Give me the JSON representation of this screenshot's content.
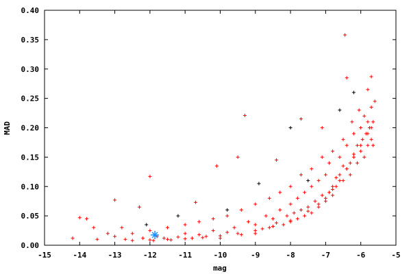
{
  "chart_data": {
    "type": "scatter",
    "title": "",
    "xlabel": "mag",
    "ylabel": "MAD",
    "xlim": [
      -15,
      -5
    ],
    "ylim": [
      0,
      0.4
    ],
    "xticks": [
      -15,
      -14,
      -13,
      -12,
      -11,
      -10,
      -9,
      -8,
      -7,
      -6,
      -5
    ],
    "xtick_labels": [
      "-15",
      "-14",
      "-13",
      "-12",
      "-11",
      "-10",
      "-9",
      "-8",
      "-7",
      "-6",
      "-5"
    ],
    "yticks": [
      0,
      0.05,
      0.1,
      0.15,
      0.2,
      0.25,
      0.3,
      0.35,
      0.4
    ],
    "ytick_labels": [
      "0.00",
      "0.05",
      "0.10",
      "0.15",
      "0.20",
      "0.25",
      "0.30",
      "0.35",
      "0.40"
    ],
    "grid": false,
    "colors": {
      "red": "#ff0000",
      "black": "#000000",
      "highlight": "#1e90ff"
    },
    "series": [
      {
        "color": "#ff0000",
        "marker": "plus",
        "points": [
          [
            -6.45,
            0.358
          ],
          [
            -9.3,
            0.221
          ],
          [
            -12,
            0.117
          ],
          [
            -13,
            0.077
          ],
          [
            -14,
            0.047
          ],
          [
            -13.8,
            0.045
          ],
          [
            -10.7,
            0.073
          ],
          [
            -10.1,
            0.135
          ],
          [
            -7.7,
            0.215
          ],
          [
            -7.1,
            0.2
          ],
          [
            -6.4,
            0.285
          ],
          [
            -5.7,
            0.287
          ],
          [
            -5.8,
            0.265
          ],
          [
            -9.5,
            0.15
          ],
          [
            -8.4,
            0.145
          ],
          [
            -14.2,
            0.012
          ],
          [
            -13.2,
            0.02
          ],
          [
            -13.6,
            0.03
          ],
          [
            -12.8,
            0.03
          ],
          [
            -12.3,
            0.065
          ],
          [
            -11.8,
            0.015
          ],
          [
            -11.6,
            0.012
          ],
          [
            -11.4,
            0.009
          ],
          [
            -11.2,
            0.014
          ],
          [
            -11,
            0.02
          ],
          [
            -10.8,
            0.012
          ],
          [
            -10.6,
            0.018
          ],
          [
            -10.4,
            0.015
          ],
          [
            -10.2,
            0.025
          ],
          [
            -10,
            0.012
          ],
          [
            -9.8,
            0.022
          ],
          [
            -9.6,
            0.03
          ],
          [
            -9.4,
            0.018
          ],
          [
            -9.2,
            0.04
          ],
          [
            -9,
            0.02
          ],
          [
            -9,
            0.035
          ],
          [
            -8.8,
            0.028
          ],
          [
            -8.7,
            0.05
          ],
          [
            -8.6,
            0.03
          ],
          [
            -8.5,
            0.045
          ],
          [
            -8.4,
            0.038
          ],
          [
            -8.3,
            0.06
          ],
          [
            -8.2,
            0.035
          ],
          [
            -8.1,
            0.05
          ],
          [
            -8,
            0.04
          ],
          [
            -8,
            0.07
          ],
          [
            -7.9,
            0.055
          ],
          [
            -7.8,
            0.045
          ],
          [
            -7.8,
            0.08
          ],
          [
            -7.7,
            0.06
          ],
          [
            -7.6,
            0.05
          ],
          [
            -7.6,
            0.09
          ],
          [
            -7.5,
            0.065
          ],
          [
            -7.4,
            0.055
          ],
          [
            -7.4,
            0.1
          ],
          [
            -7.3,
            0.075
          ],
          [
            -7.2,
            0.065
          ],
          [
            -7.2,
            0.11
          ],
          [
            -7.1,
            0.085
          ],
          [
            -7,
            0.075
          ],
          [
            -7,
            0.12
          ],
          [
            -6.9,
            0.09
          ],
          [
            -6.9,
            0.14
          ],
          [
            -6.8,
            0.1
          ],
          [
            -6.8,
            0.085
          ],
          [
            -6.7,
            0.115
          ],
          [
            -6.7,
            0.1
          ],
          [
            -6.6,
            0.12
          ],
          [
            -6.6,
            0.15
          ],
          [
            -6.5,
            0.11
          ],
          [
            -6.5,
            0.135
          ],
          [
            -6.4,
            0.13
          ],
          [
            -6.4,
            0.17
          ],
          [
            -6.3,
            0.14
          ],
          [
            -6.3,
            0.12
          ],
          [
            -6.2,
            0.155
          ],
          [
            -6.2,
            0.19
          ],
          [
            -6.1,
            0.14
          ],
          [
            -6.1,
            0.17
          ],
          [
            -6,
            0.16
          ],
          [
            -6,
            0.2
          ],
          [
            -5.95,
            0.18
          ],
          [
            -5.9,
            0.15
          ],
          [
            -5.9,
            0.22
          ],
          [
            -5.85,
            0.19
          ],
          [
            -5.8,
            0.17
          ],
          [
            -5.8,
            0.21
          ],
          [
            -5.75,
            0.2
          ],
          [
            -5.7,
            0.18
          ],
          [
            -5.7,
            0.235
          ],
          [
            -5.65,
            0.21
          ],
          [
            -5.6,
            0.245
          ],
          [
            -5.65,
            0.17
          ],
          [
            -6.05,
            0.23
          ],
          [
            -6.25,
            0.21
          ],
          [
            -6.5,
            0.18
          ],
          [
            -6.8,
            0.16
          ],
          [
            -7.1,
            0.15
          ],
          [
            -7.4,
            0.13
          ],
          [
            -7.7,
            0.12
          ],
          [
            -8,
            0.1
          ],
          [
            -8.3,
            0.09
          ],
          [
            -8.6,
            0.08
          ],
          [
            -9,
            0.07
          ],
          [
            -9.4,
            0.06
          ],
          [
            -9.8,
            0.05
          ],
          [
            -10.2,
            0.045
          ],
          [
            -10.6,
            0.04
          ],
          [
            -11,
            0.035
          ],
          [
            -11.5,
            0.03
          ],
          [
            -12,
            0.025
          ],
          [
            -12.5,
            0.02
          ],
          [
            -13,
            0.015
          ],
          [
            -13.5,
            0.01
          ],
          [
            -12.2,
            0.012
          ],
          [
            -12.7,
            0.01
          ],
          [
            -11.9,
            0.008
          ],
          [
            -12.5,
            0.008
          ],
          [
            -12,
            0.009
          ],
          [
            -11.5,
            0.01
          ],
          [
            -11,
            0.011
          ],
          [
            -10.5,
            0.013
          ],
          [
            -10,
            0.016
          ],
          [
            -9.5,
            0.02
          ],
          [
            -9,
            0.025
          ],
          [
            -8.5,
            0.032
          ],
          [
            -8,
            0.042
          ],
          [
            -7.5,
            0.058
          ],
          [
            -7.2,
            0.07
          ],
          [
            -7,
            0.08
          ],
          [
            -6.8,
            0.095
          ],
          [
            -6.6,
            0.11
          ],
          [
            -6.4,
            0.13
          ],
          [
            -6.2,
            0.15
          ],
          [
            -6,
            0.17
          ],
          [
            -5.8,
            0.19
          ],
          [
            -5.7,
            0.2
          ]
        ]
      },
      {
        "color": "#000000",
        "marker": "plus",
        "points": [
          [
            -12.1,
            0.035
          ],
          [
            -8.9,
            0.105
          ],
          [
            -7.5,
            0.11
          ],
          [
            -6.2,
            0.26
          ],
          [
            -6.6,
            0.23
          ],
          [
            -9.8,
            0.06
          ],
          [
            -8,
            0.2
          ],
          [
            -11.2,
            0.05
          ]
        ]
      },
      {
        "color": "#1e90ff",
        "marker": "star",
        "points": [
          [
            -11.86,
            0.0175
          ]
        ]
      }
    ]
  }
}
